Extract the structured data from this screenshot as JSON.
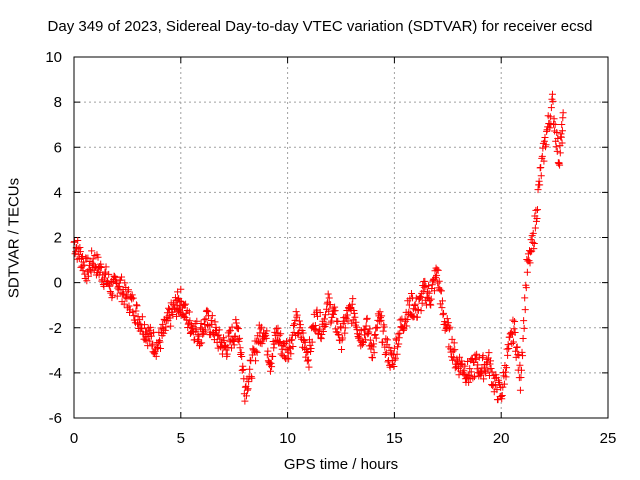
{
  "chart_data": {
    "type": "scatter",
    "title": "Day 349 of 2023, Sidereal Day-to-day VTEC variation (SDTVAR) for receiver ecsd",
    "xlabel": "GPS time / hours",
    "ylabel": "SDTVAR / TECUs",
    "xlim": [
      0,
      25
    ],
    "ylim": [
      -6,
      10
    ],
    "xticks": [
      0,
      5,
      10,
      15,
      20,
      25
    ],
    "yticks": [
      -6,
      -4,
      -2,
      0,
      2,
      4,
      6,
      8,
      10
    ],
    "grid": true,
    "marker": "+",
    "marker_color": "#ff0000",
    "series": [
      {
        "name": "SDTVAR",
        "x": [
          0.0,
          0.3,
          0.6,
          0.9,
          1.2,
          1.5,
          1.8,
          2.1,
          2.4,
          2.7,
          3.0,
          3.3,
          3.6,
          3.9,
          4.2,
          4.5,
          4.8,
          5.0,
          5.3,
          5.6,
          5.9,
          6.2,
          6.5,
          6.8,
          7.1,
          7.4,
          7.7,
          8.0,
          8.3,
          8.6,
          8.9,
          9.2,
          9.5,
          9.8,
          10.1,
          10.4,
          10.7,
          11.0,
          11.3,
          11.6,
          11.9,
          12.2,
          12.5,
          12.8,
          13.1,
          13.4,
          13.7,
          14.0,
          14.3,
          14.6,
          14.9,
          15.2,
          15.5,
          15.8,
          16.1,
          16.4,
          16.7,
          17.0,
          17.3,
          17.6,
          17.9,
          18.2,
          18.5,
          18.8,
          19.1,
          19.4,
          19.7,
          20.0,
          20.3,
          20.6,
          20.9,
          21.2,
          21.5,
          21.8,
          22.1,
          22.4,
          22.7,
          22.9
        ],
        "y": [
          1.8,
          1.2,
          0.5,
          1.0,
          0.6,
          0.2,
          -0.3,
          0.0,
          -0.6,
          -0.9,
          -1.5,
          -2.0,
          -2.5,
          -2.8,
          -2.2,
          -1.5,
          -1.0,
          -0.8,
          -1.6,
          -2.0,
          -2.3,
          -1.7,
          -2.0,
          -2.6,
          -2.9,
          -2.4,
          -2.0,
          -4.7,
          -3.8,
          -2.5,
          -2.0,
          -3.5,
          -2.2,
          -3.0,
          -2.8,
          -1.8,
          -2.5,
          -3.2,
          -1.5,
          -2.0,
          -1.0,
          -1.6,
          -2.5,
          -1.5,
          -1.2,
          -2.4,
          -2.0,
          -3.0,
          -1.6,
          -2.8,
          -3.6,
          -2.3,
          -1.5,
          -1.0,
          -1.2,
          -0.4,
          -0.6,
          0.5,
          -1.5,
          -2.5,
          -3.5,
          -3.7,
          -4.1,
          -3.6,
          -3.8,
          -3.5,
          -4.5,
          -5.0,
          -3.2,
          -2.0,
          -4.3,
          0.5,
          1.8,
          4.5,
          6.5,
          7.9,
          5.5,
          7.0
        ]
      }
    ]
  }
}
